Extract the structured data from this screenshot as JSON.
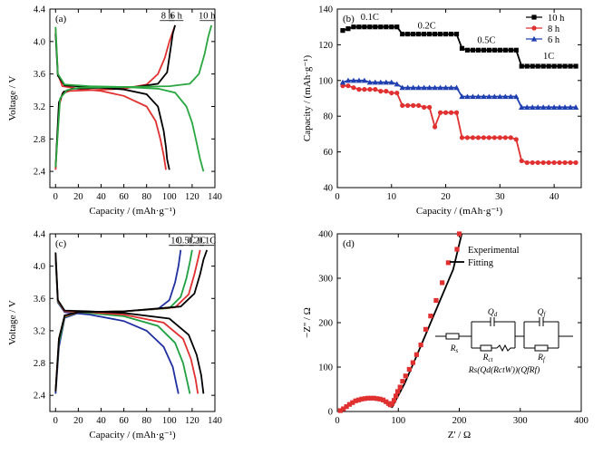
{
  "chart_data": [
    {
      "panel": "(a)",
      "type": "line",
      "xlabel": "Capacity / (mAh·g⁻¹)",
      "ylabel": "Voltage / V",
      "xlim": [
        -5,
        140
      ],
      "ylim": [
        2.2,
        4.4
      ],
      "xticks": [
        0,
        20,
        40,
        60,
        80,
        100,
        120,
        140
      ],
      "yticks": [
        2.4,
        2.8,
        3.2,
        3.6,
        4.0,
        4.4
      ],
      "annotations": [
        "8 h",
        "6 h",
        "10 h"
      ],
      "series": [
        {
          "name": "8 h",
          "color": "#e03030",
          "charge": [
            [
              0,
              2.42
            ],
            [
              3,
              3.2
            ],
            [
              6,
              3.36
            ],
            [
              12,
              3.39
            ],
            [
              30,
              3.4
            ],
            [
              60,
              3.42
            ],
            [
              80,
              3.47
            ],
            [
              90,
              3.6
            ],
            [
              96,
              3.8
            ],
            [
              100,
              4.0
            ],
            [
              105,
              4.2
            ]
          ],
          "discharge": [
            [
              0,
              4.15
            ],
            [
              2,
              3.6
            ],
            [
              6,
              3.45
            ],
            [
              20,
              3.42
            ],
            [
              40,
              3.39
            ],
            [
              60,
              3.33
            ],
            [
              80,
              3.2
            ],
            [
              88,
              3.02
            ],
            [
              92,
              2.8
            ],
            [
              95,
              2.6
            ],
            [
              97,
              2.42
            ]
          ]
        },
        {
          "name": "6 h",
          "color": "#000000",
          "charge": [
            [
              0,
              2.45
            ],
            [
              3,
              3.25
            ],
            [
              7,
              3.38
            ],
            [
              15,
              3.42
            ],
            [
              40,
              3.43
            ],
            [
              70,
              3.44
            ],
            [
              90,
              3.48
            ],
            [
              98,
              3.62
            ],
            [
              101,
              3.9
            ],
            [
              103,
              4.1
            ],
            [
              105,
              4.2
            ]
          ],
          "discharge": [
            [
              0,
              4.1
            ],
            [
              2,
              3.58
            ],
            [
              8,
              3.46
            ],
            [
              30,
              3.44
            ],
            [
              60,
              3.41
            ],
            [
              80,
              3.35
            ],
            [
              90,
              3.2
            ],
            [
              95,
              2.9
            ],
            [
              97,
              2.7
            ],
            [
              98,
              2.55
            ],
            [
              100,
              2.42
            ]
          ]
        },
        {
          "name": "10 h",
          "color": "#2aa640",
          "charge": [
            [
              0,
              2.45
            ],
            [
              4,
              3.3
            ],
            [
              10,
              3.4
            ],
            [
              20,
              3.43
            ],
            [
              60,
              3.44
            ],
            [
              100,
              3.45
            ],
            [
              118,
              3.48
            ],
            [
              126,
              3.6
            ],
            [
              131,
              3.85
            ],
            [
              134,
              4.05
            ],
            [
              137,
              4.2
            ]
          ],
          "discharge": [
            [
              0,
              4.18
            ],
            [
              2,
              3.6
            ],
            [
              8,
              3.47
            ],
            [
              30,
              3.45
            ],
            [
              60,
              3.44
            ],
            [
              90,
              3.42
            ],
            [
              105,
              3.37
            ],
            [
              115,
              3.2
            ],
            [
              120,
              3.0
            ],
            [
              124,
              2.75
            ],
            [
              127,
              2.55
            ],
            [
              130,
              2.4
            ]
          ]
        }
      ]
    },
    {
      "panel": "(b)",
      "type": "scatter",
      "xlabel": "Capacity / (mAh·g⁻¹)",
      "ylabel": "Capacity / (mAh·g⁻¹)",
      "xlim": [
        0,
        45
      ],
      "ylim": [
        40,
        140
      ],
      "xticks": [
        0,
        10,
        20,
        30,
        40
      ],
      "yticks": [
        40,
        60,
        80,
        100,
        120,
        140
      ],
      "rate_labels": [
        "0.1C",
        "0.2C",
        "0.5C",
        "1C"
      ],
      "legend_position": "top-right",
      "series": [
        {
          "name": "10 h",
          "color": "#000000",
          "marker": "square",
          "x": [
            1,
            2,
            3,
            4,
            5,
            6,
            7,
            8,
            9,
            10,
            11,
            12,
            13,
            14,
            15,
            16,
            17,
            18,
            19,
            20,
            21,
            22,
            23,
            24,
            25,
            26,
            27,
            28,
            29,
            30,
            31,
            32,
            33,
            34,
            35,
            36,
            37,
            38,
            39,
            40,
            41,
            42,
            43,
            44
          ],
          "y": [
            128,
            129,
            130,
            130,
            130,
            130,
            130,
            130,
            130,
            130,
            130,
            126,
            126,
            126,
            126,
            126,
            126,
            126,
            126,
            126,
            126,
            126,
            118,
            117,
            117,
            117,
            117,
            117,
            117,
            117,
            117,
            117,
            117,
            108,
            108,
            108,
            108,
            108,
            108,
            108,
            108,
            108,
            108,
            108
          ]
        },
        {
          "name": "8 h",
          "color": "#e03030",
          "marker": "circle",
          "x": [
            1,
            2,
            3,
            4,
            5,
            6,
            7,
            8,
            9,
            10,
            11,
            12,
            13,
            14,
            15,
            16,
            17,
            18,
            19,
            20,
            21,
            22,
            23,
            24,
            25,
            26,
            27,
            28,
            29,
            30,
            31,
            32,
            33,
            34,
            35,
            36,
            37,
            38,
            39,
            40,
            41,
            42,
            43,
            44
          ],
          "y": [
            97,
            97,
            96,
            95,
            95,
            95,
            95,
            94,
            94,
            93,
            93,
            86,
            86,
            86,
            86,
            85,
            85,
            74,
            82,
            82,
            82,
            82,
            68,
            68,
            68,
            68,
            68,
            68,
            68,
            68,
            68,
            68,
            67,
            55,
            54,
            54,
            54,
            54,
            54,
            54,
            54,
            54,
            54,
            54
          ]
        },
        {
          "name": "6 h",
          "color": "#2040b0",
          "marker": "triangle",
          "x": [
            1,
            2,
            3,
            4,
            5,
            6,
            7,
            8,
            9,
            10,
            11,
            12,
            13,
            14,
            15,
            16,
            17,
            18,
            19,
            20,
            21,
            22,
            23,
            24,
            25,
            26,
            27,
            28,
            29,
            30,
            31,
            32,
            33,
            34,
            35,
            36,
            37,
            38,
            39,
            40,
            41,
            42,
            43,
            44
          ],
          "y": [
            99,
            100,
            100,
            100,
            100,
            99,
            99,
            99,
            99,
            99,
            98,
            96,
            96,
            96,
            96,
            96,
            96,
            96,
            96,
            96,
            96,
            96,
            91,
            91,
            91,
            91,
            91,
            91,
            91,
            91,
            91,
            91,
            91,
            85,
            85,
            85,
            85,
            85,
            85,
            85,
            85,
            85,
            85,
            85
          ]
        }
      ]
    },
    {
      "panel": "(c)",
      "type": "line",
      "xlabel": "Capacity / (mAh·g⁻¹)",
      "ylabel": "Voltage / V",
      "xlim": [
        -5,
        140
      ],
      "ylim": [
        2.2,
        4.4
      ],
      "xticks": [
        0,
        20,
        40,
        60,
        80,
        100,
        120,
        140
      ],
      "yticks": [
        2.4,
        2.8,
        3.2,
        3.6,
        4.0,
        4.4
      ],
      "annotations": [
        "1C",
        "0.5C",
        "0.2C",
        "0.1C"
      ],
      "series": [
        {
          "name": "1C",
          "color": "#2030a0",
          "charge": [
            [
              0,
              2.42
            ],
            [
              3,
              3.0
            ],
            [
              8,
              3.36
            ],
            [
              20,
              3.42
            ],
            [
              60,
              3.44
            ],
            [
              90,
              3.47
            ],
            [
              100,
              3.58
            ],
            [
              105,
              3.8
            ],
            [
              108,
              4.0
            ],
            [
              110,
              4.2
            ]
          ],
          "discharge": [
            [
              0,
              4.1
            ],
            [
              2,
              3.55
            ],
            [
              8,
              3.43
            ],
            [
              30,
              3.4
            ],
            [
              60,
              3.32
            ],
            [
              80,
              3.2
            ],
            [
              95,
              3.0
            ],
            [
              103,
              2.75
            ],
            [
              106,
              2.55
            ],
            [
              108,
              2.42
            ]
          ]
        },
        {
          "name": "0.5C",
          "color": "#20a040",
          "charge": [
            [
              0,
              2.45
            ],
            [
              3,
              3.05
            ],
            [
              8,
              3.37
            ],
            [
              20,
              3.43
            ],
            [
              60,
              3.44
            ],
            [
              100,
              3.48
            ],
            [
              110,
              3.62
            ],
            [
              115,
              3.85
            ],
            [
              118,
              4.05
            ],
            [
              120,
              4.2
            ]
          ],
          "discharge": [
            [
              0,
              4.12
            ],
            [
              2,
              3.56
            ],
            [
              8,
              3.44
            ],
            [
              30,
              3.42
            ],
            [
              60,
              3.38
            ],
            [
              90,
              3.26
            ],
            [
              105,
              3.05
            ],
            [
              112,
              2.8
            ],
            [
              116,
              2.55
            ],
            [
              118,
              2.42
            ]
          ]
        },
        {
          "name": "0.2C",
          "color": "#e03030",
          "charge": [
            [
              0,
              2.45
            ],
            [
              3,
              3.1
            ],
            [
              8,
              3.38
            ],
            [
              20,
              3.43
            ],
            [
              60,
              3.44
            ],
            [
              105,
              3.49
            ],
            [
              117,
              3.65
            ],
            [
              122,
              3.9
            ],
            [
              125,
              4.08
            ],
            [
              127,
              4.2
            ]
          ],
          "discharge": [
            [
              0,
              4.15
            ],
            [
              2,
              3.57
            ],
            [
              8,
              3.44
            ],
            [
              30,
              3.43
            ],
            [
              60,
              3.4
            ],
            [
              95,
              3.3
            ],
            [
              112,
              3.1
            ],
            [
              119,
              2.85
            ],
            [
              123,
              2.6
            ],
            [
              125,
              2.42
            ]
          ]
        },
        {
          "name": "0.1C",
          "color": "#000000",
          "charge": [
            [
              0,
              2.45
            ],
            [
              3,
              3.1
            ],
            [
              8,
              3.39
            ],
            [
              20,
              3.43
            ],
            [
              60,
              3.44
            ],
            [
              110,
              3.5
            ],
            [
              122,
              3.66
            ],
            [
              127,
              3.9
            ],
            [
              130,
              4.08
            ],
            [
              133,
              4.2
            ]
          ],
          "discharge": [
            [
              0,
              4.17
            ],
            [
              2,
              3.58
            ],
            [
              8,
              3.45
            ],
            [
              30,
              3.44
            ],
            [
              60,
              3.42
            ],
            [
              100,
              3.35
            ],
            [
              117,
              3.15
            ],
            [
              124,
              2.9
            ],
            [
              128,
              2.65
            ],
            [
              130,
              2.42
            ]
          ]
        }
      ]
    },
    {
      "panel": "(d)",
      "type": "scatter",
      "xlabel": "Z' / Ω",
      "ylabel": "−Z'' / Ω",
      "xlim": [
        0,
        400
      ],
      "ylim": [
        0,
        400
      ],
      "xticks": [
        0,
        100,
        200,
        300,
        400
      ],
      "yticks": [
        0,
        100,
        200,
        300,
        400
      ],
      "legend_position": "top-right",
      "circuit_labels": {
        "qd": "Q",
        "qd_sub": "d",
        "qf": "Q",
        "qf_sub": "f",
        "rs": "R",
        "rs_sub": "s",
        "rct": "R",
        "rct_sub": "ct",
        "rf": "R",
        "rf_sub": "f",
        "formula": "Rs(Qd(RctW))(QfRf)"
      },
      "series": [
        {
          "name": "Experimental",
          "color": "#e03030",
          "marker": "square",
          "x": [
            5,
            10,
            15,
            20,
            25,
            30,
            35,
            40,
            45,
            50,
            55,
            60,
            65,
            70,
            75,
            80,
            84,
            87,
            90,
            93,
            96,
            99,
            103,
            107,
            112,
            118,
            124,
            130,
            137,
            145,
            153,
            162,
            172,
            182,
            200
          ],
          "y": [
            2,
            6,
            11,
            16,
            20,
            24,
            26,
            28,
            29,
            30,
            30,
            30,
            29,
            28,
            26,
            22,
            18,
            15,
            18,
            25,
            35,
            45,
            55,
            68,
            80,
            95,
            110,
            128,
            150,
            185,
            215,
            250,
            290,
            335,
            400
          ]
        },
        {
          "name": "Fitting",
          "color": "#000000",
          "marker": "line",
          "x": [
            3,
            10,
            20,
            30,
            40,
            50,
            60,
            70,
            80,
            86,
            90,
            110,
            130,
            150,
            170,
            190,
            204
          ],
          "y": [
            0,
            7,
            17,
            24,
            28,
            30,
            30,
            27,
            19,
            12,
            10,
            62,
            125,
            190,
            255,
            320,
            400
          ]
        }
      ]
    }
  ]
}
